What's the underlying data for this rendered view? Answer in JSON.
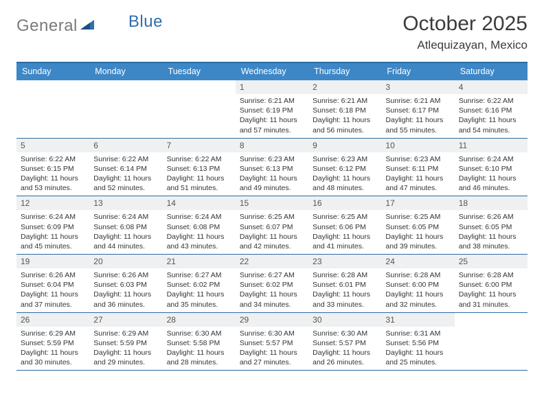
{
  "logo": {
    "part1": "General",
    "part2": "Blue"
  },
  "title": "October 2025",
  "location": "Atlequizayan, Mexico",
  "colors": {
    "header_bg": "#3d87c7",
    "header_border": "#2d6aa0",
    "daynum_bg": "#eef0f1",
    "text": "#2e2e2e",
    "logo_gray": "#7a7a7a",
    "logo_blue": "#2f6fab"
  },
  "weekdays": [
    "Sunday",
    "Monday",
    "Tuesday",
    "Wednesday",
    "Thursday",
    "Friday",
    "Saturday"
  ],
  "weeks": [
    [
      {
        "blank": true
      },
      {
        "blank": true
      },
      {
        "blank": true
      },
      {
        "num": "1",
        "sunrise": "Sunrise: 6:21 AM",
        "sunset": "Sunset: 6:19 PM",
        "daylight1": "Daylight: 11 hours",
        "daylight2": "and 57 minutes."
      },
      {
        "num": "2",
        "sunrise": "Sunrise: 6:21 AM",
        "sunset": "Sunset: 6:18 PM",
        "daylight1": "Daylight: 11 hours",
        "daylight2": "and 56 minutes."
      },
      {
        "num": "3",
        "sunrise": "Sunrise: 6:21 AM",
        "sunset": "Sunset: 6:17 PM",
        "daylight1": "Daylight: 11 hours",
        "daylight2": "and 55 minutes."
      },
      {
        "num": "4",
        "sunrise": "Sunrise: 6:22 AM",
        "sunset": "Sunset: 6:16 PM",
        "daylight1": "Daylight: 11 hours",
        "daylight2": "and 54 minutes."
      }
    ],
    [
      {
        "num": "5",
        "sunrise": "Sunrise: 6:22 AM",
        "sunset": "Sunset: 6:15 PM",
        "daylight1": "Daylight: 11 hours",
        "daylight2": "and 53 minutes."
      },
      {
        "num": "6",
        "sunrise": "Sunrise: 6:22 AM",
        "sunset": "Sunset: 6:14 PM",
        "daylight1": "Daylight: 11 hours",
        "daylight2": "and 52 minutes."
      },
      {
        "num": "7",
        "sunrise": "Sunrise: 6:22 AM",
        "sunset": "Sunset: 6:13 PM",
        "daylight1": "Daylight: 11 hours",
        "daylight2": "and 51 minutes."
      },
      {
        "num": "8",
        "sunrise": "Sunrise: 6:23 AM",
        "sunset": "Sunset: 6:13 PM",
        "daylight1": "Daylight: 11 hours",
        "daylight2": "and 49 minutes."
      },
      {
        "num": "9",
        "sunrise": "Sunrise: 6:23 AM",
        "sunset": "Sunset: 6:12 PM",
        "daylight1": "Daylight: 11 hours",
        "daylight2": "and 48 minutes."
      },
      {
        "num": "10",
        "sunrise": "Sunrise: 6:23 AM",
        "sunset": "Sunset: 6:11 PM",
        "daylight1": "Daylight: 11 hours",
        "daylight2": "and 47 minutes."
      },
      {
        "num": "11",
        "sunrise": "Sunrise: 6:24 AM",
        "sunset": "Sunset: 6:10 PM",
        "daylight1": "Daylight: 11 hours",
        "daylight2": "and 46 minutes."
      }
    ],
    [
      {
        "num": "12",
        "sunrise": "Sunrise: 6:24 AM",
        "sunset": "Sunset: 6:09 PM",
        "daylight1": "Daylight: 11 hours",
        "daylight2": "and 45 minutes."
      },
      {
        "num": "13",
        "sunrise": "Sunrise: 6:24 AM",
        "sunset": "Sunset: 6:08 PM",
        "daylight1": "Daylight: 11 hours",
        "daylight2": "and 44 minutes."
      },
      {
        "num": "14",
        "sunrise": "Sunrise: 6:24 AM",
        "sunset": "Sunset: 6:08 PM",
        "daylight1": "Daylight: 11 hours",
        "daylight2": "and 43 minutes."
      },
      {
        "num": "15",
        "sunrise": "Sunrise: 6:25 AM",
        "sunset": "Sunset: 6:07 PM",
        "daylight1": "Daylight: 11 hours",
        "daylight2": "and 42 minutes."
      },
      {
        "num": "16",
        "sunrise": "Sunrise: 6:25 AM",
        "sunset": "Sunset: 6:06 PM",
        "daylight1": "Daylight: 11 hours",
        "daylight2": "and 41 minutes."
      },
      {
        "num": "17",
        "sunrise": "Sunrise: 6:25 AM",
        "sunset": "Sunset: 6:05 PM",
        "daylight1": "Daylight: 11 hours",
        "daylight2": "and 39 minutes."
      },
      {
        "num": "18",
        "sunrise": "Sunrise: 6:26 AM",
        "sunset": "Sunset: 6:05 PM",
        "daylight1": "Daylight: 11 hours",
        "daylight2": "and 38 minutes."
      }
    ],
    [
      {
        "num": "19",
        "sunrise": "Sunrise: 6:26 AM",
        "sunset": "Sunset: 6:04 PM",
        "daylight1": "Daylight: 11 hours",
        "daylight2": "and 37 minutes."
      },
      {
        "num": "20",
        "sunrise": "Sunrise: 6:26 AM",
        "sunset": "Sunset: 6:03 PM",
        "daylight1": "Daylight: 11 hours",
        "daylight2": "and 36 minutes."
      },
      {
        "num": "21",
        "sunrise": "Sunrise: 6:27 AM",
        "sunset": "Sunset: 6:02 PM",
        "daylight1": "Daylight: 11 hours",
        "daylight2": "and 35 minutes."
      },
      {
        "num": "22",
        "sunrise": "Sunrise: 6:27 AM",
        "sunset": "Sunset: 6:02 PM",
        "daylight1": "Daylight: 11 hours",
        "daylight2": "and 34 minutes."
      },
      {
        "num": "23",
        "sunrise": "Sunrise: 6:28 AM",
        "sunset": "Sunset: 6:01 PM",
        "daylight1": "Daylight: 11 hours",
        "daylight2": "and 33 minutes."
      },
      {
        "num": "24",
        "sunrise": "Sunrise: 6:28 AM",
        "sunset": "Sunset: 6:00 PM",
        "daylight1": "Daylight: 11 hours",
        "daylight2": "and 32 minutes."
      },
      {
        "num": "25",
        "sunrise": "Sunrise: 6:28 AM",
        "sunset": "Sunset: 6:00 PM",
        "daylight1": "Daylight: 11 hours",
        "daylight2": "and 31 minutes."
      }
    ],
    [
      {
        "num": "26",
        "sunrise": "Sunrise: 6:29 AM",
        "sunset": "Sunset: 5:59 PM",
        "daylight1": "Daylight: 11 hours",
        "daylight2": "and 30 minutes."
      },
      {
        "num": "27",
        "sunrise": "Sunrise: 6:29 AM",
        "sunset": "Sunset: 5:59 PM",
        "daylight1": "Daylight: 11 hours",
        "daylight2": "and 29 minutes."
      },
      {
        "num": "28",
        "sunrise": "Sunrise: 6:30 AM",
        "sunset": "Sunset: 5:58 PM",
        "daylight1": "Daylight: 11 hours",
        "daylight2": "and 28 minutes."
      },
      {
        "num": "29",
        "sunrise": "Sunrise: 6:30 AM",
        "sunset": "Sunset: 5:57 PM",
        "daylight1": "Daylight: 11 hours",
        "daylight2": "and 27 minutes."
      },
      {
        "num": "30",
        "sunrise": "Sunrise: 6:30 AM",
        "sunset": "Sunset: 5:57 PM",
        "daylight1": "Daylight: 11 hours",
        "daylight2": "and 26 minutes."
      },
      {
        "num": "31",
        "sunrise": "Sunrise: 6:31 AM",
        "sunset": "Sunset: 5:56 PM",
        "daylight1": "Daylight: 11 hours",
        "daylight2": "and 25 minutes."
      },
      {
        "blank": true
      }
    ]
  ]
}
